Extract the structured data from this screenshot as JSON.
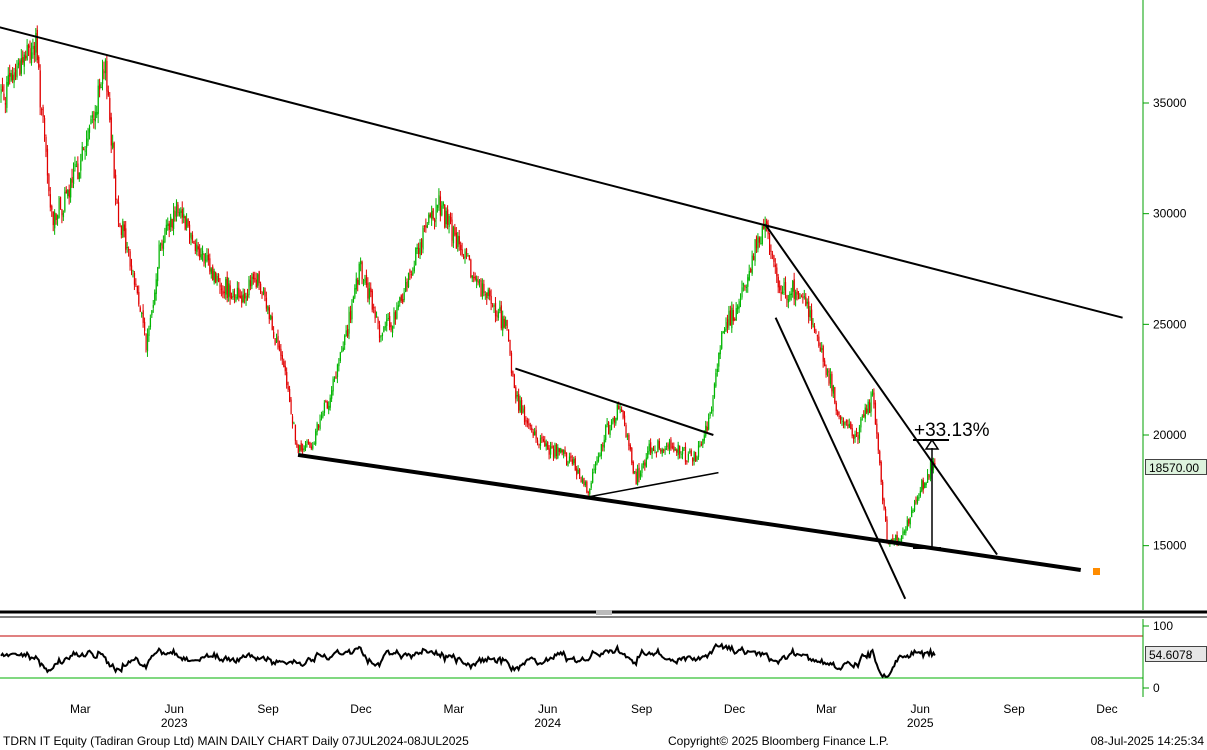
{
  "chart_data": [
    {
      "type": "candlestick",
      "title": "",
      "xlabel": "",
      "ylabel": "",
      "ylim": [
        12000,
        39500
      ],
      "yticks": [
        15000,
        20000,
        25000,
        30000,
        35000
      ],
      "x_month_labels": [
        "Mar",
        "Jun",
        "Sep",
        "Dec",
        "Mar",
        "Jun",
        "Sep",
        "Dec",
        "Mar",
        "Jun",
        "Sep",
        "Dec"
      ],
      "x_year_labels": [
        "2023",
        "2024",
        "2025"
      ],
      "last_value": "18570.00",
      "annotation": "+33.13%",
      "colors": {
        "up": "#00b400",
        "down": "#e00000",
        "axis": "#00a000",
        "trendline": "#000000",
        "marker": "#ff8c00"
      },
      "price_path": [
        [
          "2023-01-01",
          35500
        ],
        [
          "2023-01-15",
          36800
        ],
        [
          "2023-01-31",
          37600
        ],
        [
          "2023-02-15",
          29800
        ],
        [
          "2023-03-01",
          30500
        ],
        [
          "2023-03-20",
          33000
        ],
        [
          "2023-04-10",
          36500
        ],
        [
          "2023-04-20",
          30500
        ],
        [
          "2023-05-10",
          26500
        ],
        [
          "2023-05-20",
          24000
        ],
        [
          "2023-06-01",
          28500
        ],
        [
          "2023-06-20",
          30500
        ],
        [
          "2023-07-10",
          28200
        ],
        [
          "2023-07-31",
          26800
        ],
        [
          "2023-08-20",
          26300
        ],
        [
          "2023-09-05",
          27000
        ],
        [
          "2023-09-20",
          25000
        ],
        [
          "2023-10-05",
          22000
        ],
        [
          "2023-10-15",
          19200
        ],
        [
          "2023-10-31",
          19800
        ],
        [
          "2023-11-20",
          22500
        ],
        [
          "2023-12-01",
          24500
        ],
        [
          "2023-12-15",
          27500
        ],
        [
          "2024-01-05",
          24500
        ],
        [
          "2024-01-20",
          25500
        ],
        [
          "2024-02-10",
          28500
        ],
        [
          "2024-03-01",
          30500
        ],
        [
          "2024-03-10",
          29500
        ],
        [
          "2024-03-31",
          27500
        ],
        [
          "2024-04-20",
          26000
        ],
        [
          "2024-05-05",
          25000
        ],
        [
          "2024-05-15",
          21800
        ],
        [
          "2024-06-01",
          20000
        ],
        [
          "2024-06-15",
          19500
        ],
        [
          "2024-07-10",
          18800
        ],
        [
          "2024-07-25",
          17500
        ],
        [
          "2024-08-10",
          20000
        ],
        [
          "2024-08-25",
          21200
        ],
        [
          "2024-09-10",
          18000
        ],
        [
          "2024-09-25",
          19500
        ],
        [
          "2024-10-20",
          19500
        ],
        [
          "2024-11-05",
          18800
        ],
        [
          "2024-11-20",
          20500
        ],
        [
          "2024-12-05",
          25000
        ],
        [
          "2024-12-20",
          25800
        ],
        [
          "2025-01-05",
          28500
        ],
        [
          "2025-01-15",
          29300
        ],
        [
          "2025-01-31",
          26500
        ],
        [
          "2025-02-20",
          26500
        ],
        [
          "2025-03-10",
          24000
        ],
        [
          "2025-03-31",
          20500
        ],
        [
          "2025-04-15",
          20000
        ],
        [
          "2025-04-30",
          21700
        ],
        [
          "2025-05-15",
          15000
        ],
        [
          "2025-05-31",
          15500
        ],
        [
          "2025-06-15",
          17500
        ],
        [
          "2025-07-05",
          19300
        ],
        [
          "2025-07-08",
          18570
        ]
      ],
      "trendlines": [
        {
          "from": [
            "2022-12-20",
            38500
          ],
          "to": [
            "2025-12-31",
            25300
          ],
          "width": 2
        },
        {
          "from": [
            "2023-10-15",
            19100
          ],
          "to": [
            "2025-11-20",
            13900
          ],
          "width": 4
        },
        {
          "from": [
            "2024-05-15",
            23000
          ],
          "to": [
            "2024-11-25",
            20000
          ],
          "width": 2
        },
        {
          "from": [
            "2024-07-25",
            17200
          ],
          "to": [
            "2024-11-30",
            18300
          ],
          "width": 1.5
        },
        {
          "from": [
            "2025-01-15",
            29500
          ],
          "to": [
            "2025-08-30",
            14600
          ],
          "width": 2
        },
        {
          "from": [
            "2025-01-25",
            25300
          ],
          "to": [
            "2025-06-01",
            12600
          ],
          "width": 2
        }
      ]
    },
    {
      "type": "line",
      "title": "",
      "ylim": [
        0,
        100
      ],
      "yticks": [
        0,
        100
      ],
      "upper_band": 85,
      "lower_band": 15,
      "last_value": "54.6078",
      "colors": {
        "line": "#000000",
        "upper": "#c00000",
        "lower": "#00b000"
      }
    }
  ],
  "footer": {
    "left": "TDRN IT Equity (Tadiran Group Ltd) MAIN DAILY CHART  Daily 07JUL2024-08JUL2025",
    "center": "Copyright© 2025 Bloomberg Finance L.P.",
    "right": "08-Jul-2025 14:25:34"
  }
}
